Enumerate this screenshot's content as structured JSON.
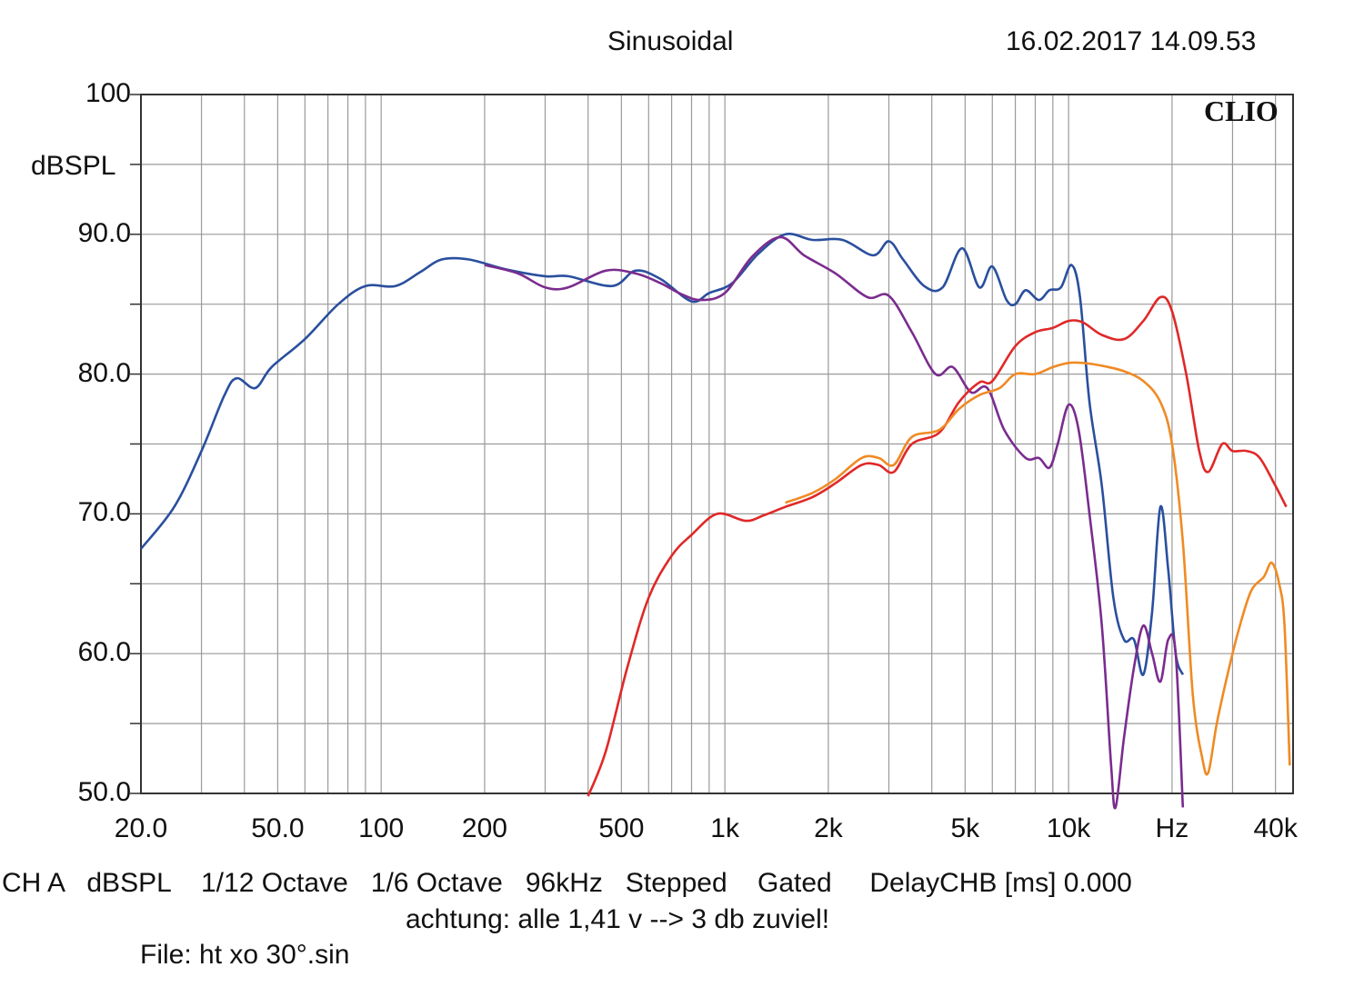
{
  "header": {
    "title": "Sinusoidal",
    "timestamp": "16.02.2017 14.09.53",
    "brand": "CLIO"
  },
  "footer": {
    "settings_line": "CH A   dBSPL    1/12 Octave   1/6 Octave   96kHz   Stepped    Gated     DelayCHB [ms] 0.000",
    "note": "achtung: alle 1,41 v --> 3 db zuviel!",
    "file": "File: ht xo 30°.sin"
  },
  "chart_data": {
    "type": "line",
    "title": "Sinusoidal",
    "xlabel": "Hz",
    "ylabel": "dBSPL",
    "xscale": "log",
    "xlim": [
      20,
      45000
    ],
    "ylim": [
      50,
      100
    ],
    "grid": true,
    "y_ticks": [
      {
        "value": 100,
        "label": "100"
      },
      {
        "value": 90,
        "label": "90.0"
      },
      {
        "value": 80,
        "label": "80.0"
      },
      {
        "value": 70,
        "label": "70.0"
      },
      {
        "value": 60,
        "label": "60.0"
      },
      {
        "value": 50,
        "label": "50.0"
      }
    ],
    "x_ticks": [
      {
        "value": 20,
        "label": "20.0"
      },
      {
        "value": 50,
        "label": "50.0"
      },
      {
        "value": 100,
        "label": "100"
      },
      {
        "value": 200,
        "label": "200"
      },
      {
        "value": 500,
        "label": "500"
      },
      {
        "value": 1000,
        "label": "1k"
      },
      {
        "value": 2000,
        "label": "2k"
      },
      {
        "value": 5000,
        "label": "5k"
      },
      {
        "value": 10000,
        "label": "10k"
      },
      {
        "value": 20000,
        "label": "Hz"
      },
      {
        "value": 40000,
        "label": "40k"
      }
    ],
    "series": [
      {
        "color": "#2a4f9e",
        "points": [
          [
            20,
            67.5
          ],
          [
            25,
            70.5
          ],
          [
            30,
            74.5
          ],
          [
            35,
            78.5
          ],
          [
            38,
            79.7
          ],
          [
            43,
            79
          ],
          [
            48,
            80.5
          ],
          [
            60,
            82.5
          ],
          [
            75,
            85
          ],
          [
            90,
            86.3
          ],
          [
            110,
            86.3
          ],
          [
            130,
            87.3
          ],
          [
            150,
            88.2
          ],
          [
            180,
            88.2
          ],
          [
            230,
            87.5
          ],
          [
            300,
            87
          ],
          [
            350,
            87
          ],
          [
            470,
            86.3
          ],
          [
            550,
            87.4
          ],
          [
            650,
            86.8
          ],
          [
            800,
            85.2
          ],
          [
            900,
            85.8
          ],
          [
            1050,
            86.5
          ],
          [
            1250,
            88.6
          ],
          [
            1500,
            90
          ],
          [
            1800,
            89.6
          ],
          [
            2200,
            89.6
          ],
          [
            2700,
            88.5
          ],
          [
            3000,
            89.5
          ],
          [
            3300,
            88.2
          ],
          [
            3800,
            86.3
          ],
          [
            4300,
            86.2
          ],
          [
            4900,
            89
          ],
          [
            5500,
            86.2
          ],
          [
            6000,
            87.7
          ],
          [
            6600,
            85.3
          ],
          [
            7000,
            85
          ],
          [
            7500,
            86
          ],
          [
            8200,
            85.3
          ],
          [
            8800,
            86
          ],
          [
            9500,
            86.2
          ],
          [
            10200,
            87.8
          ],
          [
            10800,
            85.5
          ],
          [
            11500,
            78
          ],
          [
            12500,
            72
          ],
          [
            13500,
            64
          ],
          [
            14500,
            61
          ],
          [
            15500,
            61
          ],
          [
            16500,
            58.5
          ],
          [
            17500,
            63
          ],
          [
            18500,
            70.5
          ],
          [
            19500,
            66
          ],
          [
            20500,
            60
          ],
          [
            21500,
            58.5
          ]
        ]
      },
      {
        "color": "#7a2c8e",
        "points": [
          [
            200,
            87.8
          ],
          [
            250,
            87.2
          ],
          [
            300,
            86.2
          ],
          [
            350,
            86.2
          ],
          [
            450,
            87.4
          ],
          [
            550,
            87.2
          ],
          [
            650,
            86.5
          ],
          [
            750,
            85.7
          ],
          [
            850,
            85.3
          ],
          [
            1000,
            85.8
          ],
          [
            1200,
            88.4
          ],
          [
            1450,
            89.8
          ],
          [
            1700,
            88.5
          ],
          [
            2100,
            87.2
          ],
          [
            2600,
            85.5
          ],
          [
            3000,
            85.6
          ],
          [
            3500,
            83
          ],
          [
            4100,
            80
          ],
          [
            4600,
            80.5
          ],
          [
            5200,
            78.7
          ],
          [
            5800,
            79
          ],
          [
            6500,
            76
          ],
          [
            7500,
            74
          ],
          [
            8200,
            74
          ],
          [
            8800,
            73.3
          ],
          [
            9300,
            75
          ],
          [
            10000,
            77.8
          ],
          [
            10700,
            76
          ],
          [
            11500,
            70
          ],
          [
            12500,
            62
          ],
          [
            13300,
            52
          ],
          [
            13700,
            49
          ],
          [
            14500,
            54
          ],
          [
            15500,
            59
          ],
          [
            16500,
            62
          ],
          [
            17500,
            60
          ],
          [
            18500,
            58
          ],
          [
            19500,
            61
          ],
          [
            20500,
            60
          ],
          [
            21500,
            49
          ]
        ]
      },
      {
        "color": "#e02828",
        "points": [
          [
            400,
            49.8
          ],
          [
            450,
            53
          ],
          [
            520,
            59
          ],
          [
            600,
            64
          ],
          [
            700,
            67
          ],
          [
            800,
            68.5
          ],
          [
            950,
            70
          ],
          [
            1150,
            69.5
          ],
          [
            1300,
            69.9
          ],
          [
            1500,
            70.5
          ],
          [
            1800,
            71.2
          ],
          [
            2100,
            72.2
          ],
          [
            2500,
            73.5
          ],
          [
            2800,
            73.5
          ],
          [
            3100,
            73
          ],
          [
            3500,
            75
          ],
          [
            4200,
            75.8
          ],
          [
            4800,
            78
          ],
          [
            5500,
            79.4
          ],
          [
            6000,
            79.5
          ],
          [
            7000,
            82
          ],
          [
            8000,
            83
          ],
          [
            9000,
            83.3
          ],
          [
            10000,
            83.8
          ],
          [
            11000,
            83.7
          ],
          [
            12500,
            82.8
          ],
          [
            14500,
            82.5
          ],
          [
            16500,
            83.8
          ],
          [
            18500,
            85.5
          ],
          [
            20000,
            84.5
          ],
          [
            22000,
            80
          ],
          [
            24000,
            74.5
          ],
          [
            25500,
            73
          ],
          [
            28000,
            75
          ],
          [
            30000,
            74.5
          ],
          [
            33000,
            74.5
          ],
          [
            36000,
            74
          ],
          [
            40000,
            72
          ],
          [
            43000,
            70.5
          ]
        ]
      },
      {
        "color": "#f08a24",
        "points": [
          [
            1500,
            70.8
          ],
          [
            1800,
            71.5
          ],
          [
            2100,
            72.5
          ],
          [
            2500,
            74
          ],
          [
            2800,
            74
          ],
          [
            3100,
            73.5
          ],
          [
            3500,
            75.5
          ],
          [
            4200,
            76
          ],
          [
            4800,
            77.5
          ],
          [
            5500,
            78.5
          ],
          [
            6300,
            79
          ],
          [
            7000,
            80
          ],
          [
            8000,
            80
          ],
          [
            9000,
            80.5
          ],
          [
            10000,
            80.8
          ],
          [
            11000,
            80.8
          ],
          [
            12500,
            80.6
          ],
          [
            14500,
            80.2
          ],
          [
            16500,
            79.5
          ],
          [
            18500,
            78
          ],
          [
            20000,
            75
          ],
          [
            21500,
            68
          ],
          [
            23000,
            57
          ],
          [
            24500,
            52.5
          ],
          [
            25500,
            51.5
          ],
          [
            27000,
            55
          ],
          [
            29000,
            58.5
          ],
          [
            31500,
            62
          ],
          [
            34000,
            64.5
          ],
          [
            37000,
            65.5
          ],
          [
            39000,
            66.5
          ],
          [
            41000,
            65
          ],
          [
            42500,
            62
          ],
          [
            44000,
            52
          ]
        ]
      }
    ]
  }
}
